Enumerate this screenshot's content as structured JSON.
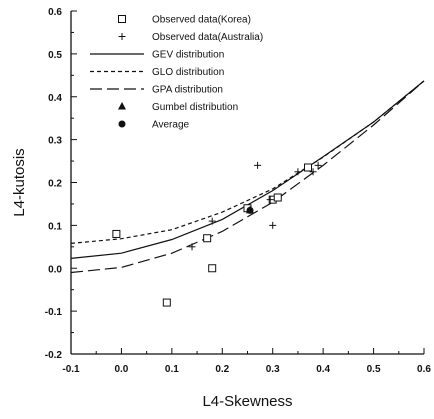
{
  "chart_data": {
    "type": "scatter",
    "xlabel": "L4-Skewness",
    "ylabel": "L4-kutosis",
    "xlim": [
      -0.1,
      0.6
    ],
    "ylim": [
      -0.2,
      0.6
    ],
    "x_ticks": [
      "-0.1",
      "0.0",
      "0.1",
      "0.2",
      "0.3",
      "0.4",
      "0.5",
      "0.6"
    ],
    "y_ticks": [
      "-0.2",
      "-0.1",
      "0.0",
      "0.1",
      "0.2",
      "0.3",
      "0.4",
      "0.5",
      "0.6"
    ],
    "grid": false,
    "legend_position": "top-left",
    "legend": [
      {
        "label": "Observed data(Korea)",
        "marker": "open-square"
      },
      {
        "label": "Observed data(Australia)",
        "marker": "plus"
      },
      {
        "label": "GEV distribution",
        "line": "solid"
      },
      {
        "label": "GLO distribution",
        "line": "short-dash"
      },
      {
        "label": "GPA distribution",
        "line": "long-dash"
      },
      {
        "label": "Gumbel distribution",
        "marker": "filled-triangle"
      },
      {
        "label": "Average",
        "marker": "filled-circle"
      }
    ],
    "series": [
      {
        "name": "Observed data(Korea)",
        "kind": "scatter",
        "marker": "open-square",
        "x": [
          -0.01,
          0.09,
          0.17,
          0.18,
          0.25,
          0.3,
          0.31,
          0.37
        ],
        "y": [
          0.08,
          -0.08,
          0.07,
          0.0,
          0.14,
          0.16,
          0.165,
          0.235
        ]
      },
      {
        "name": "Observed data(Australia)",
        "kind": "scatter",
        "marker": "plus",
        "x": [
          0.14,
          0.18,
          0.27,
          0.295,
          0.3,
          0.35,
          0.38,
          0.39
        ],
        "y": [
          0.05,
          0.11,
          0.24,
          0.16,
          0.1,
          0.225,
          0.225,
          0.24
        ]
      },
      {
        "name": "GEV distribution",
        "kind": "line",
        "dash": "solid",
        "x": [
          -0.1,
          0.0,
          0.1,
          0.2,
          0.3,
          0.4,
          0.5,
          0.6
        ],
        "y": [
          0.023,
          0.035,
          0.067,
          0.114,
          0.181,
          0.26,
          0.341,
          0.437
        ]
      },
      {
        "name": "GLO distribution",
        "kind": "line",
        "dash": "short-dash",
        "x": [
          -0.1,
          0.0,
          0.1,
          0.2,
          0.3,
          0.4,
          0.5,
          0.6
        ],
        "y": [
          0.058,
          0.069,
          0.09,
          0.131,
          0.185,
          0.259,
          0.341,
          0.437
        ]
      },
      {
        "name": "GPA distribution",
        "kind": "line",
        "dash": "long-dash",
        "x": [
          -0.1,
          0.0,
          0.1,
          0.2,
          0.3,
          0.4,
          0.5,
          0.6
        ],
        "y": [
          -0.01,
          0.002,
          0.035,
          0.086,
          0.154,
          0.24,
          0.334,
          0.437
        ]
      },
      {
        "name": "Gumbel distribution",
        "kind": "scatter",
        "marker": "filled-triangle",
        "x": [
          0.255
        ],
        "y": [
          0.135
        ]
      },
      {
        "name": "Average",
        "kind": "scatter",
        "marker": "filled-circle",
        "x": [
          0.255
        ],
        "y": [
          0.135
        ]
      }
    ]
  }
}
